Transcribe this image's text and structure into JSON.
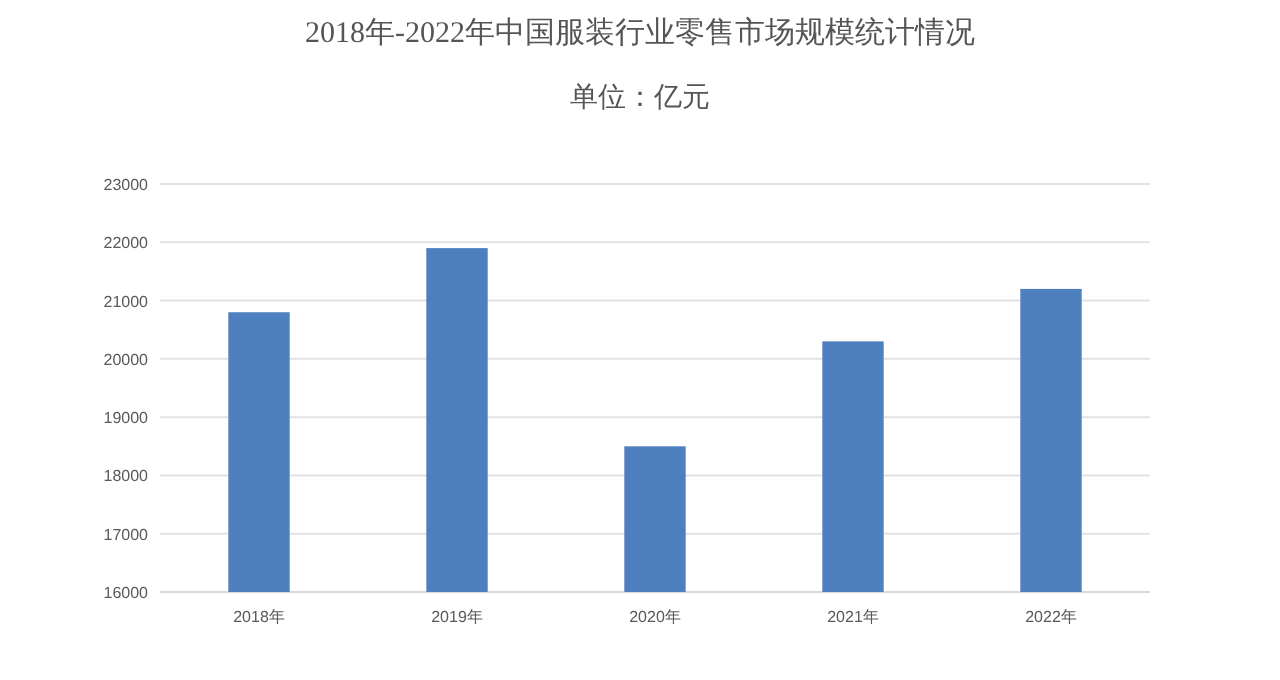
{
  "chart_data": {
    "type": "bar",
    "title": "2018年-2022年中国服装行业零售市场规模统计情况",
    "subtitle": "单位：亿元",
    "categories": [
      "2018年",
      "2019年",
      "2020年",
      "2021年",
      "2022年"
    ],
    "values": [
      20800,
      21900,
      18500,
      20300,
      21200
    ],
    "color": "#4e7fbf",
    "ylim": [
      16000,
      23000
    ],
    "yticks": [
      16000,
      17000,
      18000,
      19000,
      20000,
      21000,
      22000,
      23000
    ],
    "grid": "y"
  }
}
